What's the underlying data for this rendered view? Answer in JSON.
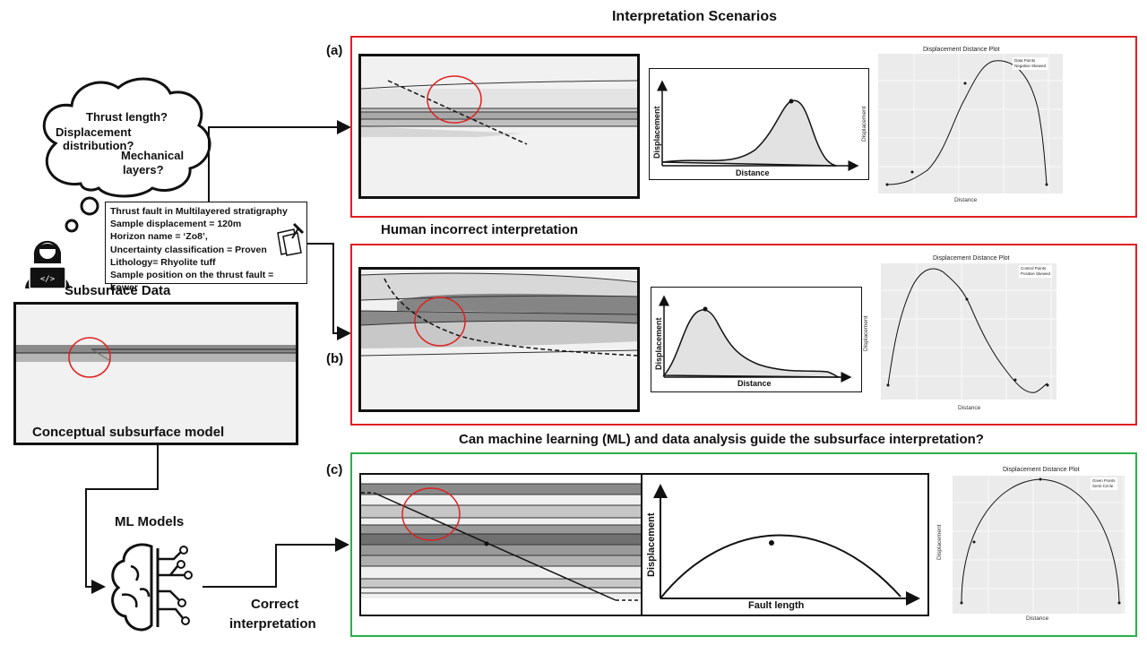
{
  "title": "Interpretation Scenarios",
  "labels": {
    "a": "(a)",
    "b": "(b)",
    "c": "(c)"
  },
  "thought_bubble": {
    "q1": "Thrust length?",
    "q2_line1": "Displacement",
    "q2_line2": "distribution?",
    "q3_line1": "Mechanical",
    "q3_line2": "layers?"
  },
  "note": {
    "lines": [
      "Thrust fault in Multilayered stratigraphy",
      "Sample displacement = 120m",
      "Horizon name = ‘Zo8’,",
      "Uncertainty classification = Proven",
      "Lithology= Rhyolite tuff",
      "Sample position on the thrust fault = Lower"
    ]
  },
  "subsurface_data_label": "Subsurface Data",
  "model_label": "Conceptual subsurface model",
  "ml_models_label": "ML Models",
  "correct_interpretation": {
    "line1": "Correct",
    "line2": "interpretation"
  },
  "human_incorrect": "Human incorrect interpretation",
  "ml_question": "Can machine learning (ML) and data analysis guide the subsurface interpretation?",
  "sketch_axes": {
    "a": {
      "x": "Distance",
      "y": "Displacement"
    },
    "b": {
      "x": "Distance",
      "y": "Displacement"
    },
    "c": {
      "x": "Fault length",
      "y": "Displacement"
    }
  },
  "plots": {
    "a": {
      "title": "Displacement Distance Plot",
      "xlabel": "Distance",
      "ylabel": "Displacement",
      "legend": [
        "Data Points",
        "Negative Skewed"
      ]
    },
    "b": {
      "title": "Displacement Distance Plot",
      "xlabel": "Distance",
      "ylabel": "Displacement",
      "legend": [
        "Control Points",
        "Positive Skewed"
      ]
    },
    "c": {
      "title": "Displacement Distance Plot",
      "xlabel": "Distance",
      "ylabel": "Displacement",
      "legend": [
        "Given Points",
        "Semi-Circle"
      ]
    }
  },
  "colors": {
    "red_frame": "#e02020",
    "green_frame": "#28b04a"
  }
}
